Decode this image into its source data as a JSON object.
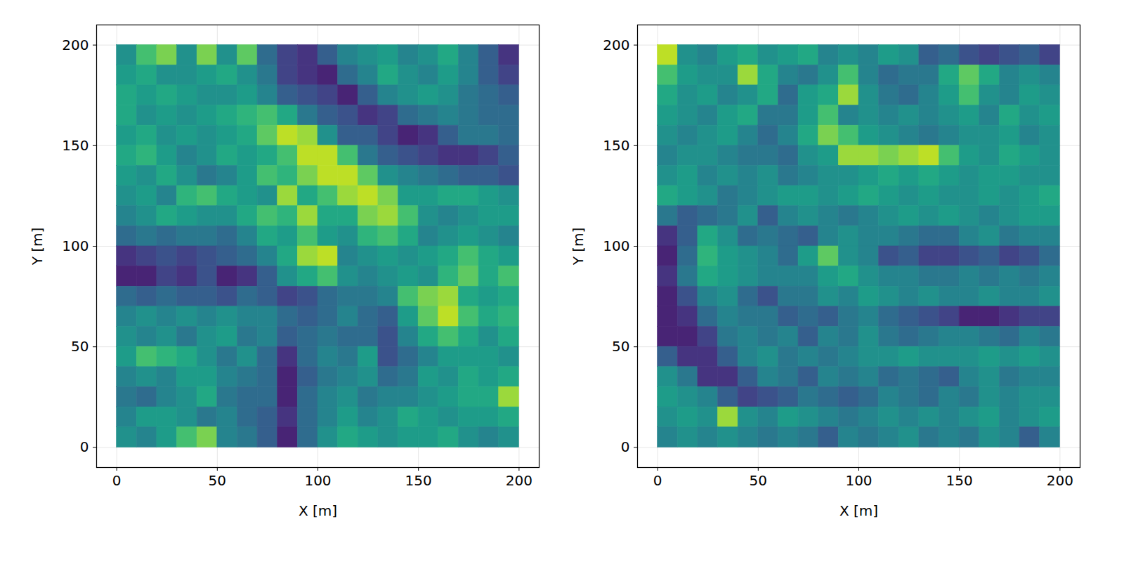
{
  "chart_data": [
    {
      "type": "heatmap",
      "xlabel": "X [m]",
      "ylabel": "Y [m]",
      "color": "viridis",
      "grid": true,
      "xlim": [
        -10,
        210
      ],
      "ylim": [
        -10,
        210
      ],
      "xticks": [
        0,
        50,
        100,
        150,
        200
      ],
      "yticks": [
        0,
        50,
        100,
        150,
        200
      ],
      "zlim": [
        0,
        1
      ],
      "x_edges": [
        0,
        10,
        20,
        30,
        40,
        50,
        60,
        70,
        80,
        90,
        100,
        110,
        120,
        130,
        140,
        150,
        160,
        170,
        180,
        190,
        200
      ],
      "y_edges": [
        200,
        190,
        180,
        170,
        160,
        150,
        140,
        130,
        120,
        110,
        100,
        90,
        80,
        70,
        60,
        50,
        40,
        30,
        20,
        10,
        0
      ],
      "z": [
        [
          0.5,
          0.7,
          0.8,
          0.5,
          0.8,
          0.5,
          0.75,
          0.35,
          0.2,
          0.15,
          0.3,
          0.45,
          0.5,
          0.55,
          0.45,
          0.5,
          0.6,
          0.45,
          0.3,
          0.15
        ],
        [
          0.55,
          0.6,
          0.5,
          0.5,
          0.55,
          0.6,
          0.5,
          0.4,
          0.2,
          0.15,
          0.1,
          0.35,
          0.45,
          0.6,
          0.5,
          0.45,
          0.55,
          0.45,
          0.3,
          0.2
        ],
        [
          0.6,
          0.55,
          0.6,
          0.55,
          0.5,
          0.5,
          0.55,
          0.45,
          0.3,
          0.25,
          0.2,
          0.1,
          0.3,
          0.45,
          0.5,
          0.55,
          0.5,
          0.4,
          0.35,
          0.3
        ],
        [
          0.6,
          0.5,
          0.55,
          0.5,
          0.55,
          0.6,
          0.65,
          0.7,
          0.6,
          0.4,
          0.3,
          0.25,
          0.15,
          0.2,
          0.35,
          0.4,
          0.45,
          0.4,
          0.35,
          0.35
        ],
        [
          0.55,
          0.6,
          0.5,
          0.55,
          0.5,
          0.55,
          0.6,
          0.75,
          0.9,
          0.85,
          0.5,
          0.3,
          0.3,
          0.2,
          0.1,
          0.15,
          0.3,
          0.4,
          0.4,
          0.35
        ],
        [
          0.6,
          0.65,
          0.55,
          0.45,
          0.5,
          0.6,
          0.55,
          0.6,
          0.7,
          0.9,
          0.9,
          0.7,
          0.4,
          0.3,
          0.25,
          0.2,
          0.15,
          0.15,
          0.2,
          0.3
        ],
        [
          0.55,
          0.5,
          0.6,
          0.5,
          0.4,
          0.45,
          0.55,
          0.7,
          0.65,
          0.8,
          0.9,
          0.9,
          0.75,
          0.5,
          0.45,
          0.4,
          0.35,
          0.3,
          0.3,
          0.25
        ],
        [
          0.5,
          0.55,
          0.45,
          0.65,
          0.7,
          0.6,
          0.55,
          0.5,
          0.85,
          0.6,
          0.7,
          0.85,
          0.9,
          0.8,
          0.55,
          0.55,
          0.6,
          0.6,
          0.55,
          0.5
        ],
        [
          0.45,
          0.5,
          0.6,
          0.55,
          0.5,
          0.5,
          0.6,
          0.7,
          0.65,
          0.85,
          0.6,
          0.6,
          0.8,
          0.85,
          0.7,
          0.5,
          0.45,
          0.5,
          0.55,
          0.55
        ],
        [
          0.35,
          0.4,
          0.35,
          0.4,
          0.4,
          0.35,
          0.45,
          0.6,
          0.55,
          0.7,
          0.55,
          0.5,
          0.65,
          0.7,
          0.6,
          0.45,
          0.5,
          0.55,
          0.5,
          0.45
        ],
        [
          0.15,
          0.2,
          0.25,
          0.2,
          0.25,
          0.3,
          0.35,
          0.45,
          0.6,
          0.85,
          0.9,
          0.45,
          0.5,
          0.55,
          0.5,
          0.55,
          0.6,
          0.7,
          0.6,
          0.55
        ],
        [
          0.1,
          0.1,
          0.2,
          0.15,
          0.25,
          0.1,
          0.15,
          0.3,
          0.5,
          0.6,
          0.7,
          0.5,
          0.45,
          0.5,
          0.55,
          0.5,
          0.65,
          0.75,
          0.6,
          0.7
        ],
        [
          0.35,
          0.3,
          0.35,
          0.3,
          0.3,
          0.25,
          0.35,
          0.3,
          0.2,
          0.25,
          0.35,
          0.4,
          0.4,
          0.45,
          0.7,
          0.8,
          0.85,
          0.6,
          0.55,
          0.6
        ],
        [
          0.45,
          0.5,
          0.45,
          0.5,
          0.45,
          0.5,
          0.45,
          0.45,
          0.35,
          0.3,
          0.35,
          0.45,
          0.35,
          0.3,
          0.55,
          0.75,
          0.9,
          0.7,
          0.6,
          0.65
        ],
        [
          0.5,
          0.45,
          0.5,
          0.4,
          0.5,
          0.55,
          0.4,
          0.45,
          0.3,
          0.35,
          0.4,
          0.35,
          0.35,
          0.25,
          0.45,
          0.6,
          0.7,
          0.6,
          0.5,
          0.6
        ],
        [
          0.55,
          0.7,
          0.65,
          0.6,
          0.5,
          0.4,
          0.5,
          0.35,
          0.15,
          0.35,
          0.45,
          0.4,
          0.55,
          0.25,
          0.35,
          0.45,
          0.55,
          0.55,
          0.55,
          0.5
        ],
        [
          0.45,
          0.5,
          0.45,
          0.55,
          0.55,
          0.45,
          0.4,
          0.35,
          0.1,
          0.3,
          0.4,
          0.45,
          0.5,
          0.35,
          0.4,
          0.55,
          0.5,
          0.6,
          0.55,
          0.6
        ],
        [
          0.4,
          0.35,
          0.45,
          0.5,
          0.6,
          0.4,
          0.35,
          0.35,
          0.1,
          0.35,
          0.45,
          0.5,
          0.4,
          0.45,
          0.45,
          0.5,
          0.55,
          0.6,
          0.6,
          0.85
        ],
        [
          0.45,
          0.55,
          0.55,
          0.5,
          0.4,
          0.45,
          0.35,
          0.3,
          0.15,
          0.35,
          0.45,
          0.55,
          0.45,
          0.5,
          0.6,
          0.55,
          0.5,
          0.55,
          0.55,
          0.6
        ],
        [
          0.5,
          0.45,
          0.55,
          0.7,
          0.8,
          0.45,
          0.4,
          0.3,
          0.1,
          0.35,
          0.5,
          0.6,
          0.55,
          0.5,
          0.55,
          0.55,
          0.6,
          0.5,
          0.45,
          0.5
        ]
      ]
    },
    {
      "type": "heatmap",
      "xlabel": "X [m]",
      "ylabel": "Y [m]",
      "color": "viridis",
      "grid": true,
      "xlim": [
        -10,
        210
      ],
      "ylim": [
        -10,
        210
      ],
      "xticks": [
        0,
        50,
        100,
        150,
        200
      ],
      "yticks": [
        0,
        50,
        100,
        150,
        200
      ],
      "zlim": [
        0,
        1
      ],
      "x_edges": [
        0,
        10,
        20,
        30,
        40,
        50,
        60,
        70,
        80,
        90,
        100,
        110,
        120,
        130,
        140,
        150,
        160,
        170,
        180,
        190,
        200
      ],
      "y_edges": [
        200,
        190,
        180,
        170,
        160,
        150,
        140,
        130,
        120,
        110,
        100,
        90,
        80,
        70,
        60,
        50,
        40,
        30,
        20,
        10,
        0
      ],
      "z": [
        [
          0.9,
          0.5,
          0.45,
          0.55,
          0.6,
          0.5,
          0.55,
          0.6,
          0.45,
          0.5,
          0.45,
          0.55,
          0.5,
          0.3,
          0.35,
          0.25,
          0.2,
          0.25,
          0.3,
          0.2
        ],
        [
          0.7,
          0.55,
          0.5,
          0.5,
          0.85,
          0.6,
          0.45,
          0.4,
          0.5,
          0.7,
          0.45,
          0.35,
          0.4,
          0.4,
          0.6,
          0.75,
          0.6,
          0.45,
          0.5,
          0.45
        ],
        [
          0.6,
          0.5,
          0.55,
          0.45,
          0.5,
          0.6,
          0.35,
          0.55,
          0.6,
          0.85,
          0.5,
          0.4,
          0.35,
          0.45,
          0.55,
          0.7,
          0.5,
          0.45,
          0.55,
          0.5
        ],
        [
          0.55,
          0.5,
          0.45,
          0.55,
          0.6,
          0.4,
          0.4,
          0.55,
          0.7,
          0.45,
          0.5,
          0.45,
          0.5,
          0.45,
          0.5,
          0.55,
          0.45,
          0.6,
          0.5,
          0.55
        ],
        [
          0.5,
          0.45,
          0.5,
          0.55,
          0.45,
          0.35,
          0.45,
          0.6,
          0.8,
          0.7,
          0.55,
          0.5,
          0.45,
          0.4,
          0.45,
          0.5,
          0.5,
          0.55,
          0.45,
          0.5
        ],
        [
          0.45,
          0.5,
          0.5,
          0.45,
          0.4,
          0.4,
          0.35,
          0.5,
          0.55,
          0.85,
          0.85,
          0.8,
          0.85,
          0.9,
          0.7,
          0.55,
          0.5,
          0.6,
          0.55,
          0.5
        ],
        [
          0.5,
          0.55,
          0.45,
          0.5,
          0.45,
          0.5,
          0.4,
          0.45,
          0.5,
          0.5,
          0.55,
          0.6,
          0.55,
          0.6,
          0.55,
          0.5,
          0.55,
          0.55,
          0.5,
          0.5
        ],
        [
          0.6,
          0.55,
          0.5,
          0.4,
          0.45,
          0.5,
          0.55,
          0.55,
          0.5,
          0.55,
          0.6,
          0.55,
          0.5,
          0.55,
          0.5,
          0.5,
          0.55,
          0.5,
          0.55,
          0.6
        ],
        [
          0.4,
          0.3,
          0.35,
          0.4,
          0.5,
          0.3,
          0.45,
          0.5,
          0.45,
          0.4,
          0.45,
          0.5,
          0.55,
          0.5,
          0.55,
          0.5,
          0.45,
          0.5,
          0.55,
          0.55
        ],
        [
          0.15,
          0.3,
          0.6,
          0.5,
          0.35,
          0.4,
          0.35,
          0.3,
          0.45,
          0.5,
          0.45,
          0.45,
          0.4,
          0.35,
          0.35,
          0.45,
          0.5,
          0.4,
          0.45,
          0.45
        ],
        [
          0.1,
          0.35,
          0.65,
          0.55,
          0.5,
          0.45,
          0.35,
          0.55,
          0.75,
          0.5,
          0.45,
          0.25,
          0.3,
          0.2,
          0.2,
          0.25,
          0.3,
          0.2,
          0.25,
          0.35
        ],
        [
          0.15,
          0.4,
          0.6,
          0.55,
          0.5,
          0.45,
          0.45,
          0.45,
          0.55,
          0.6,
          0.5,
          0.45,
          0.45,
          0.4,
          0.4,
          0.45,
          0.4,
          0.45,
          0.4,
          0.45
        ],
        [
          0.1,
          0.25,
          0.45,
          0.5,
          0.35,
          0.25,
          0.4,
          0.4,
          0.5,
          0.45,
          0.55,
          0.5,
          0.45,
          0.5,
          0.45,
          0.45,
          0.5,
          0.45,
          0.45,
          0.5
        ],
        [
          0.1,
          0.15,
          0.35,
          0.45,
          0.4,
          0.4,
          0.3,
          0.35,
          0.3,
          0.4,
          0.45,
          0.35,
          0.3,
          0.25,
          0.2,
          0.1,
          0.1,
          0.15,
          0.2,
          0.2
        ],
        [
          0.1,
          0.1,
          0.2,
          0.4,
          0.45,
          0.4,
          0.45,
          0.3,
          0.45,
          0.4,
          0.5,
          0.4,
          0.35,
          0.4,
          0.45,
          0.45,
          0.4,
          0.35,
          0.45,
          0.4
        ],
        [
          0.3,
          0.15,
          0.15,
          0.3,
          0.45,
          0.5,
          0.4,
          0.45,
          0.4,
          0.45,
          0.5,
          0.5,
          0.55,
          0.5,
          0.5,
          0.5,
          0.55,
          0.5,
          0.55,
          0.5
        ],
        [
          0.5,
          0.4,
          0.15,
          0.15,
          0.3,
          0.45,
          0.4,
          0.3,
          0.45,
          0.4,
          0.45,
          0.35,
          0.4,
          0.35,
          0.3,
          0.45,
          0.5,
          0.4,
          0.45,
          0.45
        ],
        [
          0.55,
          0.5,
          0.45,
          0.3,
          0.2,
          0.25,
          0.3,
          0.4,
          0.35,
          0.3,
          0.35,
          0.45,
          0.4,
          0.35,
          0.45,
          0.4,
          0.5,
          0.45,
          0.5,
          0.5
        ],
        [
          0.5,
          0.55,
          0.5,
          0.85,
          0.5,
          0.45,
          0.55,
          0.5,
          0.45,
          0.4,
          0.45,
          0.5,
          0.45,
          0.5,
          0.45,
          0.5,
          0.55,
          0.45,
          0.5,
          0.55
        ],
        [
          0.45,
          0.5,
          0.45,
          0.5,
          0.45,
          0.4,
          0.45,
          0.4,
          0.3,
          0.45,
          0.4,
          0.45,
          0.5,
          0.4,
          0.45,
          0.4,
          0.5,
          0.45,
          0.3,
          0.45
        ]
      ]
    }
  ]
}
